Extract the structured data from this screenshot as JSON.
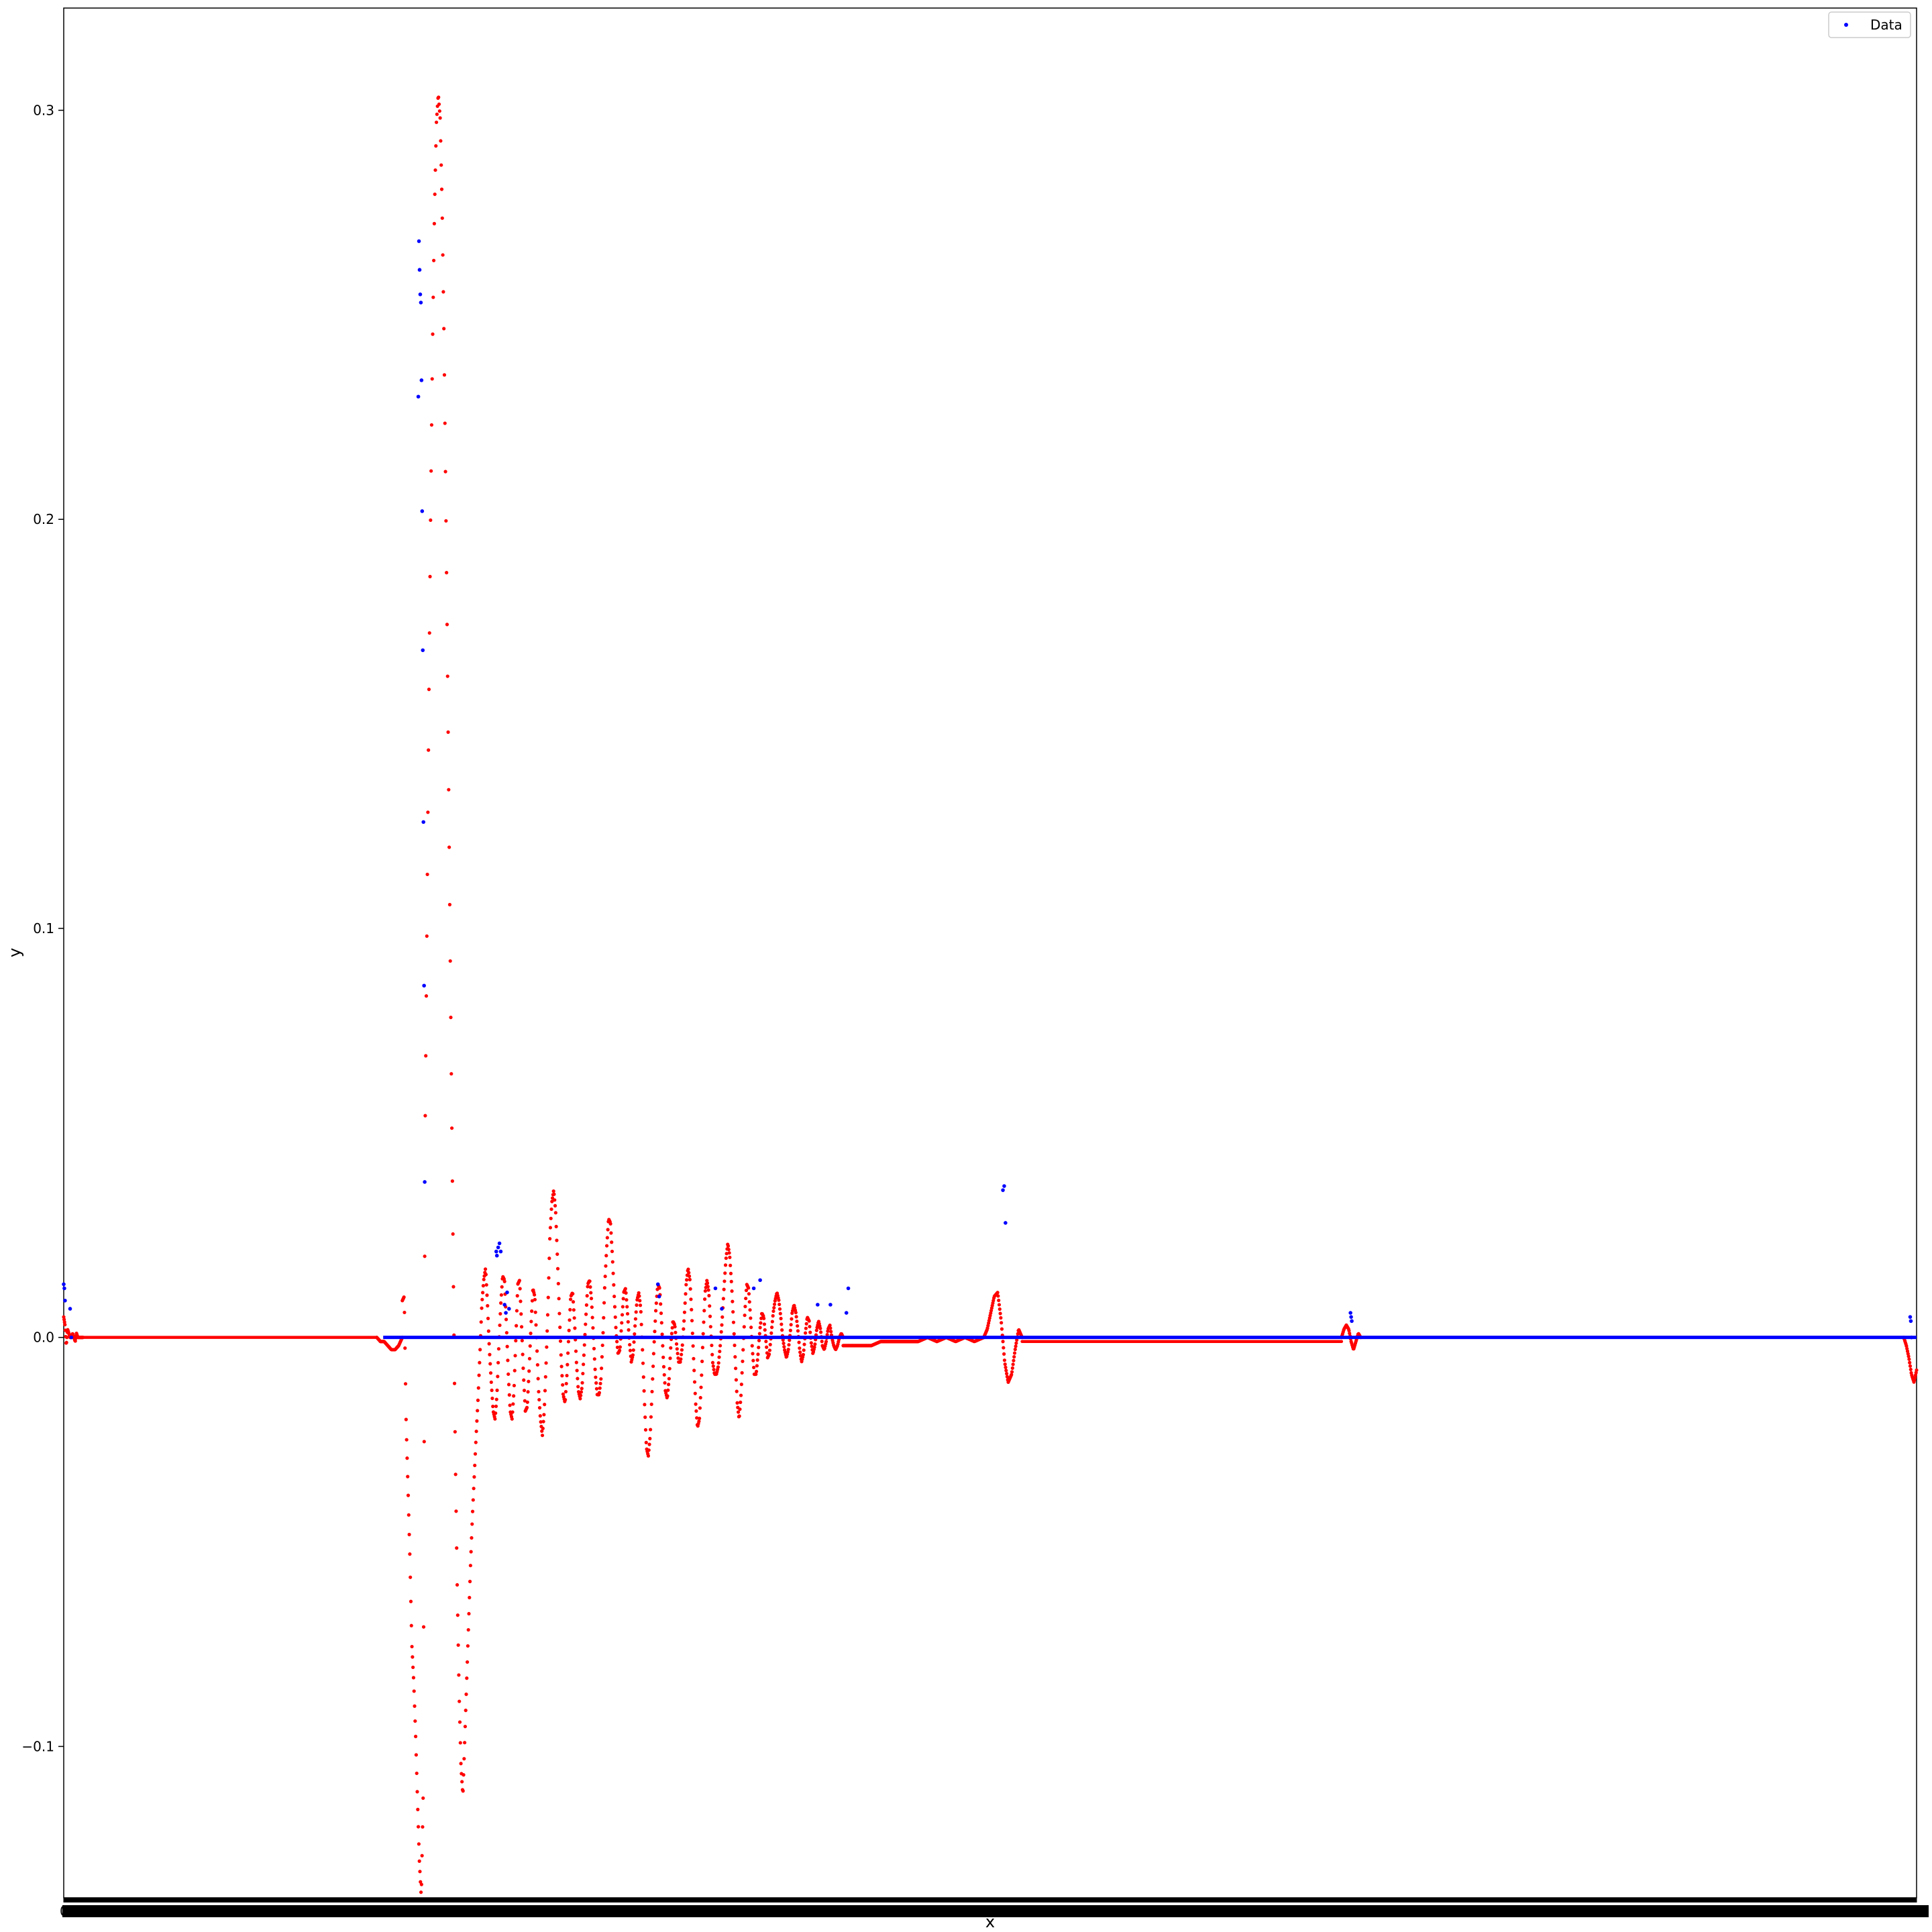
{
  "chart_data": {
    "type": "scatter",
    "title": "",
    "xlabel": "x",
    "ylabel": "y",
    "ylim": [
      -0.137,
      0.325
    ],
    "xlim": [
      0,
      2900
    ],
    "y_ticks": [
      {
        "value": 0.3,
        "label": "0.3"
      },
      {
        "value": 0.2,
        "label": "0.2"
      },
      {
        "value": 0.1,
        "label": "0.1"
      },
      {
        "value": 0.0,
        "label": "0.0"
      },
      {
        "value": -0.1,
        "label": "−0.1"
      }
    ],
    "x_tick_first_label": "0",
    "x_tick_count": 2900,
    "grid": false,
    "legend": {
      "position": "top-right",
      "entries": [
        {
          "label": "Data",
          "color": "#0000ff"
        }
      ]
    },
    "colors": {
      "data": "#0000ff",
      "fit": "#ff0000"
    },
    "series": [
      {
        "name": "Data",
        "color": "#0000ff",
        "baseline": {
          "x_start": 500,
          "x_end": 2900,
          "y": 0.0
        },
        "points": [
          {
            "x": 0,
            "y": 0.013
          },
          {
            "x": 1,
            "y": 0.012
          },
          {
            "x": 2,
            "y": 0.009
          },
          {
            "x": 10,
            "y": 0.007
          },
          {
            "x": 12,
            "y": 0.0
          },
          {
            "x": 555,
            "y": 0.23
          },
          {
            "x": 556,
            "y": 0.268
          },
          {
            "x": 557,
            "y": 0.261
          },
          {
            "x": 558,
            "y": 0.255
          },
          {
            "x": 559,
            "y": 0.253
          },
          {
            "x": 560,
            "y": 0.234
          },
          {
            "x": 561,
            "y": 0.202
          },
          {
            "x": 562,
            "y": 0.168
          },
          {
            "x": 563,
            "y": 0.126
          },
          {
            "x": 564,
            "y": 0.086
          },
          {
            "x": 565,
            "y": 0.038
          },
          {
            "x": 677,
            "y": 0.021
          },
          {
            "x": 678,
            "y": 0.02
          },
          {
            "x": 680,
            "y": 0.022
          },
          {
            "x": 682,
            "y": 0.023
          },
          {
            "x": 684,
            "y": 0.021
          },
          {
            "x": 690,
            "y": 0.008
          },
          {
            "x": 692,
            "y": 0.006
          },
          {
            "x": 694,
            "y": 0.011
          },
          {
            "x": 697,
            "y": 0.007
          },
          {
            "x": 930,
            "y": 0.013
          },
          {
            "x": 932,
            "y": 0.01
          },
          {
            "x": 1020,
            "y": 0.012
          },
          {
            "x": 1030,
            "y": 0.007
          },
          {
            "x": 1080,
            "y": 0.012
          },
          {
            "x": 1090,
            "y": 0.014
          },
          {
            "x": 1180,
            "y": 0.008
          },
          {
            "x": 1200,
            "y": 0.008
          },
          {
            "x": 1225,
            "y": 0.006
          },
          {
            "x": 1228,
            "y": 0.012
          },
          {
            "x": 1470,
            "y": 0.036
          },
          {
            "x": 1472,
            "y": 0.037
          },
          {
            "x": 1474,
            "y": 0.028
          },
          {
            "x": 2014,
            "y": 0.006
          },
          {
            "x": 2015,
            "y": 0.005
          },
          {
            "x": 2016,
            "y": 0.004
          },
          {
            "x": 2890,
            "y": 0.005
          },
          {
            "x": 2891,
            "y": 0.004
          },
          {
            "x": 2892,
            "y": 0.0
          }
        ]
      },
      {
        "color": "#ff0000",
        "segments": [
          {
            "x_start": 0,
            "x_end": 30,
            "y_sparse": [
              0.005,
              0.003,
              -0.002,
              0.002,
              0.001,
              0.0,
              0.0,
              0.001,
              0.0,
              -0.001,
              0.001,
              0.0,
              0.0,
              0.0,
              0.0,
              0.0
            ]
          },
          {
            "x_start": 30,
            "x_end": 490,
            "value": 0.0
          },
          {
            "x_start": 490,
            "x_end": 530,
            "y_sparse": [
              0.0,
              -0.001,
              -0.001,
              -0.002,
              -0.003,
              -0.003,
              -0.002,
              0.0
            ]
          },
          {
            "x_start": 530,
            "x_end": 1220,
            "y_sparse": [
              0.009,
              0.01,
              -0.021,
              -0.037,
              -0.054,
              -0.075,
              -0.084,
              -0.097,
              -0.113,
              -0.128,
              -0.137,
              -0.112,
              0.049,
              0.101,
              0.155,
              0.204,
              0.244,
              0.276,
              0.297,
              0.304,
              0.298,
              0.277,
              0.245,
              0.203,
              0.158,
              0.108,
              0.059,
              0.013,
              -0.029,
              -0.061,
              -0.087,
              -0.105,
              -0.112,
              -0.098,
              -0.084,
              -0.07,
              -0.056,
              -0.044,
              -0.034,
              -0.024,
              -0.015,
              -0.004,
              0.008,
              0.014,
              0.017,
              0.008,
              -0.003,
              -0.011,
              -0.018,
              -0.02,
              -0.014,
              -0.002,
              0.008,
              0.015,
              0.014,
              0.003,
              -0.009,
              -0.018,
              -0.02,
              -0.013,
              0.0,
              0.013,
              0.014,
              0.003,
              -0.009,
              -0.018,
              -0.017,
              -0.008,
              0.003,
              0.012,
              0.01,
              -0.001,
              -0.013,
              -0.02,
              -0.024,
              -0.018,
              -0.006,
              0.008,
              0.025,
              0.033,
              0.036,
              0.031,
              0.019,
              0.006,
              -0.006,
              -0.014,
              -0.016,
              -0.009,
              0.001,
              0.01,
              0.011,
              0.004,
              -0.006,
              -0.013,
              -0.015,
              -0.012,
              -0.004,
              0.005,
              0.013,
              0.014,
              0.009,
              0.0,
              -0.009,
              -0.014,
              -0.014,
              -0.01,
              0.0,
              0.013,
              0.022,
              0.029,
              0.028,
              0.02,
              0.01,
              0.001,
              -0.004,
              -0.003,
              0.004,
              0.011,
              0.012,
              0.006,
              -0.001,
              -0.006,
              -0.004,
              0.003,
              0.009,
              0.011,
              0.007,
              -0.004,
              -0.016,
              -0.027,
              -0.029,
              -0.024,
              -0.013,
              -0.002,
              0.007,
              0.013,
              0.012,
              0.004,
              -0.006,
              -0.013,
              -0.015,
              -0.01,
              -0.001,
              0.004,
              0.003,
              -0.002,
              -0.006,
              -0.006,
              -0.002,
              0.005,
              0.013,
              0.017,
              0.014,
              0.005,
              -0.006,
              -0.016,
              -0.022,
              -0.02,
              -0.011,
              0.001,
              0.011,
              0.014,
              0.011,
              0.002,
              -0.006,
              -0.009,
              -0.009,
              -0.007,
              -0.002,
              0.004,
              0.012,
              0.019,
              0.023,
              0.02,
              0.013,
              0.004,
              -0.006,
              -0.016,
              -0.02,
              -0.014,
              -0.004,
              0.006,
              0.013,
              0.012,
              0.005,
              -0.003,
              -0.009,
              -0.009,
              -0.004,
              0.002,
              0.006,
              0.005,
              0.0,
              -0.005,
              -0.004,
              0.001,
              0.006,
              0.009,
              0.011,
              0.009,
              0.005,
              0.0,
              -0.003,
              -0.005,
              -0.003,
              0.001,
              0.006,
              0.008,
              0.006,
              0.002,
              -0.003,
              -0.006,
              -0.004,
              0.001,
              0.005,
              0.004,
              -0.001,
              -0.004,
              -0.002,
              0.002,
              0.004,
              0.002,
              -0.002,
              -0.003,
              -0.001,
              0.002,
              0.003,
              0.0,
              -0.002,
              -0.003,
              -0.002,
              0.0,
              0.001,
              0.0
            ]
          },
          {
            "x_start": 1220,
            "x_end": 1440,
            "y_sparse": [
              -0.002,
              -0.002,
              -0.002,
              -0.002,
              -0.001,
              -0.001,
              -0.001,
              -0.001,
              -0.001,
              0.0,
              -0.001,
              0.0,
              -0.001,
              0.0,
              -0.001,
              0.0
            ]
          },
          {
            "x_start": 1440,
            "x_end": 1500,
            "y_sparse": [
              0.0,
              0.002,
              0.006,
              0.01,
              0.011,
              0.004,
              -0.006,
              -0.011,
              -0.009,
              -0.003,
              0.002,
              0.0
            ]
          },
          {
            "x_start": 1500,
            "x_end": 2000,
            "value": -0.001
          },
          {
            "x_start": 2000,
            "x_end": 2030,
            "y_sparse": [
              0.0,
              0.002,
              0.003,
              0.002,
              -0.001,
              -0.003,
              -0.001,
              0.001,
              0.0
            ]
          },
          {
            "x_start": 2030,
            "x_end": 2880,
            "value": 0.0
          },
          {
            "x_start": 2880,
            "x_end": 2900,
            "y_sparse": [
              0.0,
              -0.002,
              -0.005,
              -0.009,
              -0.011,
              -0.008
            ]
          }
        ]
      }
    ]
  }
}
